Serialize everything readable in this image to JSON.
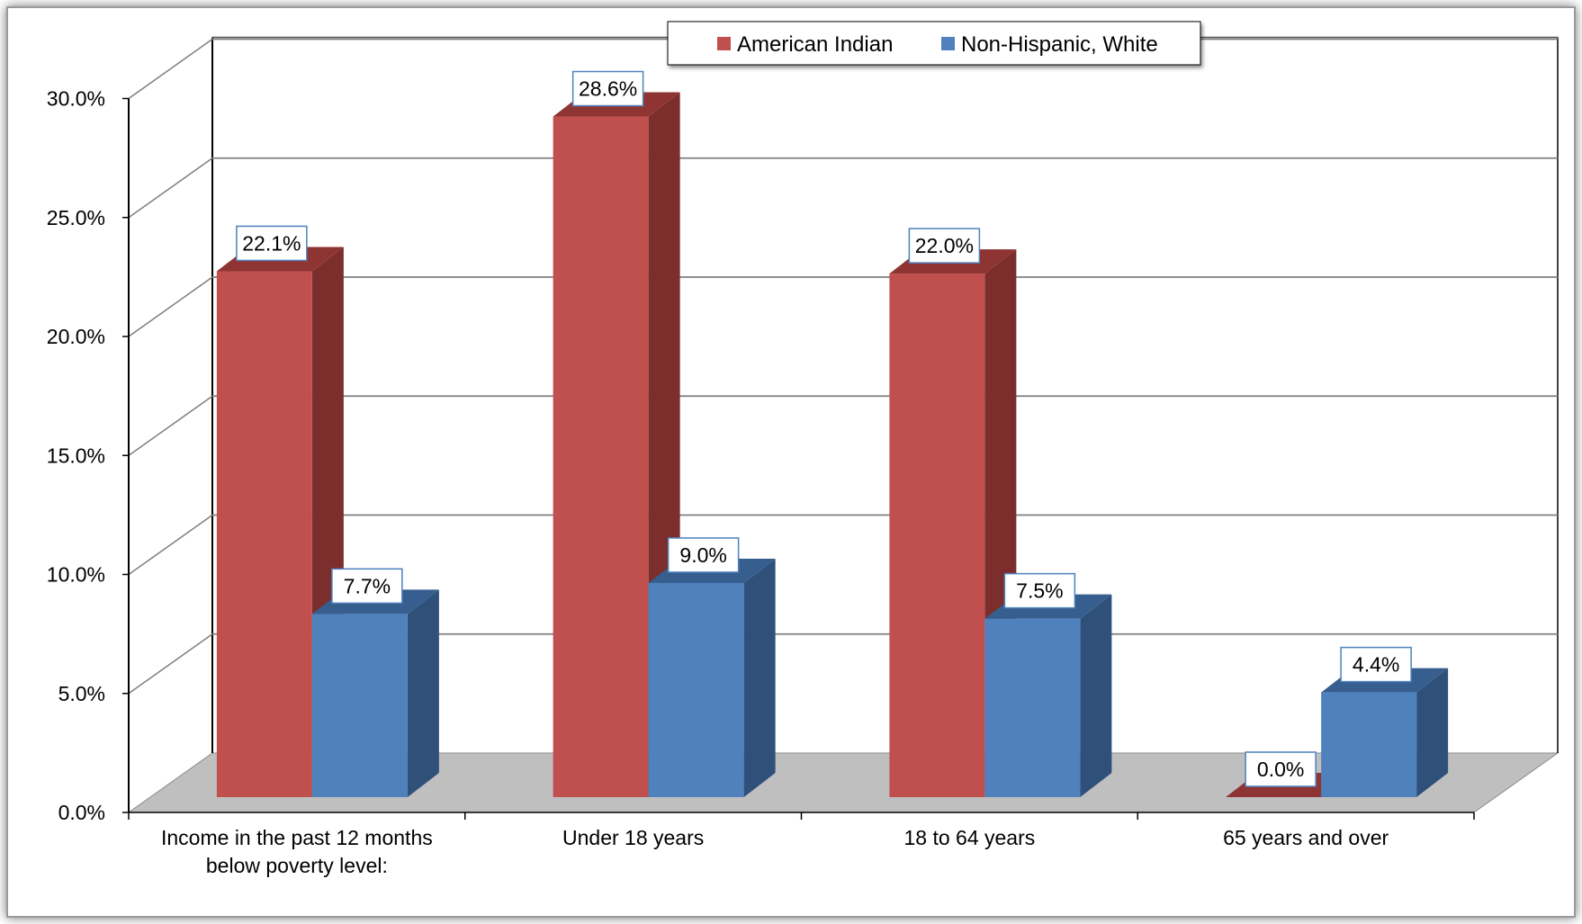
{
  "chart_data": {
    "type": "bar",
    "categories": [
      "Income in the past 12 months below poverty level:",
      "Under 18 years",
      "18 to 64 years",
      "65 years and over"
    ],
    "category_lines": [
      [
        "Income in the past 12 months",
        "below poverty level:"
      ],
      [
        "Under 18 years"
      ],
      [
        "18 to 64 years"
      ],
      [
        "65 years and over"
      ]
    ],
    "series": [
      {
        "name": "American Indian",
        "values": [
          22.1,
          28.6,
          22.0,
          0.0
        ],
        "labels": [
          "22.1%",
          "28.6%",
          "22.0%",
          "0.0%"
        ],
        "color": "#C0504D",
        "side_color": "#7B2E2C",
        "top_color": "#8E3533"
      },
      {
        "name": "Non-Hispanic, White",
        "values": [
          7.7,
          9.0,
          7.5,
          4.4
        ],
        "labels": [
          "7.7%",
          "9.0%",
          "7.5%",
          "4.4%"
        ],
        "color": "#4F81BD",
        "side_color": "#2F5079",
        "top_color": "#365E8E"
      }
    ],
    "yticks": [
      "0.0%",
      "5.0%",
      "10.0%",
      "15.0%",
      "20.0%",
      "25.0%",
      "30.0%"
    ],
    "ytick_values": [
      0,
      5,
      10,
      15,
      20,
      25,
      30
    ],
    "ylim": [
      0,
      30
    ],
    "title": "",
    "xlabel": "",
    "ylabel": "",
    "grid": true,
    "legend_position": "top",
    "style": "3d-clustered-column",
    "colors": {
      "floor": "#BFBFBF",
      "gridline": "#7F7F7F",
      "frame_shadow": "#8C8C8C"
    }
  }
}
